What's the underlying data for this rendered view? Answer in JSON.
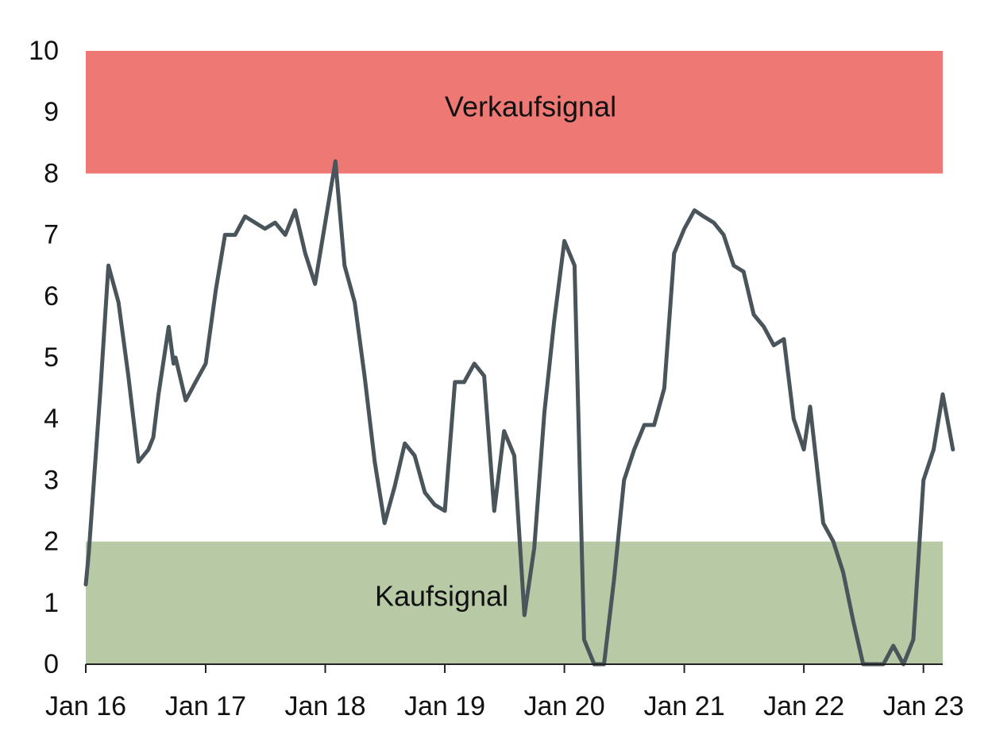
{
  "chart_data": {
    "type": "line",
    "title": "",
    "xlabel": "",
    "ylabel": "",
    "ylim": [
      0,
      10
    ],
    "xlim": [
      "2016-01",
      "2023-03"
    ],
    "y_ticks": [
      "0",
      "1",
      "2",
      "3",
      "4",
      "5",
      "6",
      "7",
      "8",
      "9",
      "10"
    ],
    "x_ticks": [
      {
        "date": "2016-01",
        "label": "Jan 16"
      },
      {
        "date": "2017-01",
        "label": "Jan 17"
      },
      {
        "date": "2018-01",
        "label": "Jan 18"
      },
      {
        "date": "2019-01",
        "label": "Jan 19"
      },
      {
        "date": "2020-01",
        "label": "Jan 20"
      },
      {
        "date": "2021-01",
        "label": "Jan 21"
      },
      {
        "date": "2022-01",
        "label": "Jan 22"
      },
      {
        "date": "2023-01",
        "label": "Jan 23"
      }
    ],
    "grid": false,
    "legend": "none",
    "bands": [
      {
        "label": "Verkaufsignal",
        "from": 8,
        "to": 10,
        "color": "#ee7873"
      },
      {
        "label": "Kaufsignal",
        "from": 0,
        "to": 2,
        "color": "#b7c9a5"
      }
    ],
    "series": [
      {
        "color": "#4a545b",
        "points": [
          [
            "2016-01-01",
            1.3
          ],
          [
            "2016-01-10",
            1.8
          ],
          [
            "2016-02-15",
            4.5
          ],
          [
            "2016-03-10",
            6.5
          ],
          [
            "2016-04-10",
            5.9
          ],
          [
            "2016-05-10",
            4.7
          ],
          [
            "2016-06-10",
            3.3
          ],
          [
            "2016-07-10",
            3.5
          ],
          [
            "2016-07-25",
            3.7
          ],
          [
            "2016-08-10",
            4.4
          ],
          [
            "2016-09-10",
            5.5
          ],
          [
            "2016-09-25",
            4.9
          ],
          [
            "2016-10-01",
            5.0
          ],
          [
            "2016-11-01",
            4.3
          ],
          [
            "2016-12-01",
            4.6
          ],
          [
            "2017-01-01",
            4.9
          ],
          [
            "2017-02-01",
            6.1
          ],
          [
            "2017-03-01",
            7.0
          ],
          [
            "2017-04-01",
            7.0
          ],
          [
            "2017-05-01",
            7.3
          ],
          [
            "2017-06-01",
            7.2
          ],
          [
            "2017-07-01",
            7.1
          ],
          [
            "2017-08-01",
            7.2
          ],
          [
            "2017-09-01",
            7.0
          ],
          [
            "2017-10-01",
            7.4
          ],
          [
            "2017-11-01",
            6.7
          ],
          [
            "2017-12-01",
            6.2
          ],
          [
            "2018-01-01",
            7.2
          ],
          [
            "2018-02-01",
            8.2
          ],
          [
            "2018-03-01",
            6.5
          ],
          [
            "2018-04-01",
            5.9
          ],
          [
            "2018-05-01",
            4.7
          ],
          [
            "2018-06-01",
            3.3
          ],
          [
            "2018-07-01",
            2.3
          ],
          [
            "2018-08-01",
            2.9
          ],
          [
            "2018-09-01",
            3.6
          ],
          [
            "2018-10-01",
            3.4
          ],
          [
            "2018-11-01",
            2.8
          ],
          [
            "2018-12-01",
            2.6
          ],
          [
            "2019-01-01",
            2.5
          ],
          [
            "2019-02-01",
            4.6
          ],
          [
            "2019-03-01",
            4.6
          ],
          [
            "2019-04-01",
            4.9
          ],
          [
            "2019-05-01",
            4.7
          ],
          [
            "2019-06-01",
            2.5
          ],
          [
            "2019-07-01",
            3.8
          ],
          [
            "2019-08-01",
            3.4
          ],
          [
            "2019-09-01",
            0.8
          ],
          [
            "2019-10-01",
            1.9
          ],
          [
            "2019-11-01",
            4.1
          ],
          [
            "2019-12-01",
            5.6
          ],
          [
            "2020-01-01",
            6.9
          ],
          [
            "2020-02-01",
            6.5
          ],
          [
            "2020-03-01",
            0.4
          ],
          [
            "2020-04-01",
            0.0
          ],
          [
            "2020-05-01",
            0.0
          ],
          [
            "2020-06-01",
            1.4
          ],
          [
            "2020-07-01",
            3.0
          ],
          [
            "2020-08-01",
            3.5
          ],
          [
            "2020-09-01",
            3.9
          ],
          [
            "2020-10-01",
            3.9
          ],
          [
            "2020-11-01",
            4.5
          ],
          [
            "2020-12-01",
            6.7
          ],
          [
            "2021-01-01",
            7.1
          ],
          [
            "2021-02-01",
            7.4
          ],
          [
            "2021-03-01",
            7.3
          ],
          [
            "2021-04-01",
            7.2
          ],
          [
            "2021-05-01",
            7.0
          ],
          [
            "2021-06-01",
            6.5
          ],
          [
            "2021-07-01",
            6.4
          ],
          [
            "2021-08-01",
            5.7
          ],
          [
            "2021-09-01",
            5.5
          ],
          [
            "2021-10-01",
            5.2
          ],
          [
            "2021-11-01",
            5.3
          ],
          [
            "2021-12-01",
            4.0
          ],
          [
            "2022-01-01",
            3.5
          ],
          [
            "2022-01-20",
            4.2
          ],
          [
            "2022-03-01",
            2.3
          ],
          [
            "2022-04-01",
            2.0
          ],
          [
            "2022-05-01",
            1.5
          ],
          [
            "2022-06-01",
            0.7
          ],
          [
            "2022-07-01",
            0.0
          ],
          [
            "2022-08-01",
            0.0
          ],
          [
            "2022-09-01",
            0.0
          ],
          [
            "2022-10-01",
            0.3
          ],
          [
            "2022-11-01",
            0.0
          ],
          [
            "2022-12-01",
            0.4
          ],
          [
            "2023-01-01",
            3.0
          ],
          [
            "2023-02-01",
            3.5
          ],
          [
            "2023-03-01",
            4.4
          ],
          [
            "2023-04-01",
            3.5
          ]
        ]
      }
    ]
  }
}
